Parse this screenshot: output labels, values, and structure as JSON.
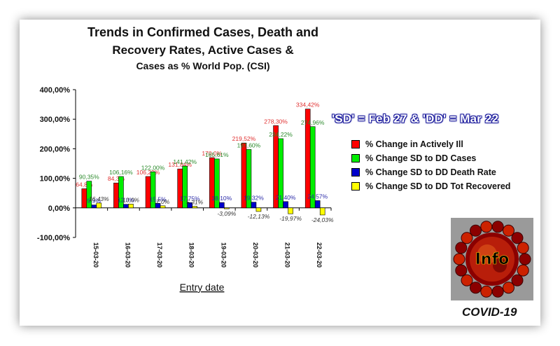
{
  "header": {
    "title_line1": "Trends in Confirmed Cases, Death and",
    "title_line2": "Recovery Rates, Active Cases &",
    "title_line3": "Cases as % World Pop. (CSI)"
  },
  "banner": {
    "text": "'SD' = Feb 27 & 'DD' = Mar 22"
  },
  "logo": {
    "text": "Info",
    "caption": "COVID-19"
  },
  "colors": {
    "red": "#ff0000",
    "green": "#00ee00",
    "blue": "#0000cc",
    "yellow": "#ffff00",
    "banner_outline": "#1a1a9c"
  },
  "chart_data": {
    "type": "bar",
    "xlabel": "Entry date",
    "ylabel": "",
    "ylim": [
      -100,
      400
    ],
    "yticks": [
      "400,00%",
      "300,00%",
      "200,00%",
      "100,00%",
      "0,00%",
      "-100,00%"
    ],
    "ytick_values": [
      400,
      300,
      200,
      100,
      0,
      -100
    ],
    "categories": [
      "15-03-20",
      "16-03-20",
      "17-03-20",
      "18-03-20",
      "19-03-20",
      "20-03-20",
      "21-03-20",
      "22-03-20"
    ],
    "grid": false,
    "legend_position": "right",
    "series": [
      {
        "name": "% Change in Actively Ill",
        "color": "#ff0000",
        "values": [
          64.8,
          84.3,
          106.2,
          131.8,
          170.0,
          219.52,
          278.3,
          334.42
        ],
        "labels": [
          "64,8%",
          "84,3%",
          "106,22%",
          "131,84%",
          "170,0%",
          "219,52%",
          "278,30%",
          "334,42%"
        ]
      },
      {
        "name": "% Change SD to DD Cases",
        "color": "#00ee00",
        "values": [
          90.35,
          106.16,
          122.0,
          141.42,
          165.6,
          197.6,
          234.22,
          274.96
        ],
        "labels": [
          "90,35%",
          "106,16%",
          "122,00%",
          "141,42%",
          "165,61%",
          "197,60%",
          "234,22%",
          "274,96%"
        ]
      },
      {
        "name": "% Change SD to DD Death Rate",
        "color": "#0000cc",
        "values": [
          9.9,
          12.0,
          15.5,
          17.75,
          18.1,
          19.32,
          21.4,
          24.57
        ],
        "labels": [
          "9,9%",
          "12,0%",
          "15,5%",
          "17,75%",
          "18,10%",
          "19,32%",
          "21,40%",
          "24,57%"
        ]
      },
      {
        "name": "% Change SD to DD Tot Recovered",
        "color": "#ffff00",
        "values": [
          16.43,
          13.0,
          7.0,
          5.31,
          -3.09,
          -12.13,
          -19.97,
          -24.03
        ],
        "labels": [
          "16,43%",
          "13,0%",
          "7,0%",
          "5,31%",
          "-3,09%",
          "-12,13%",
          "-19,97%",
          "-24,03%"
        ]
      }
    ]
  }
}
